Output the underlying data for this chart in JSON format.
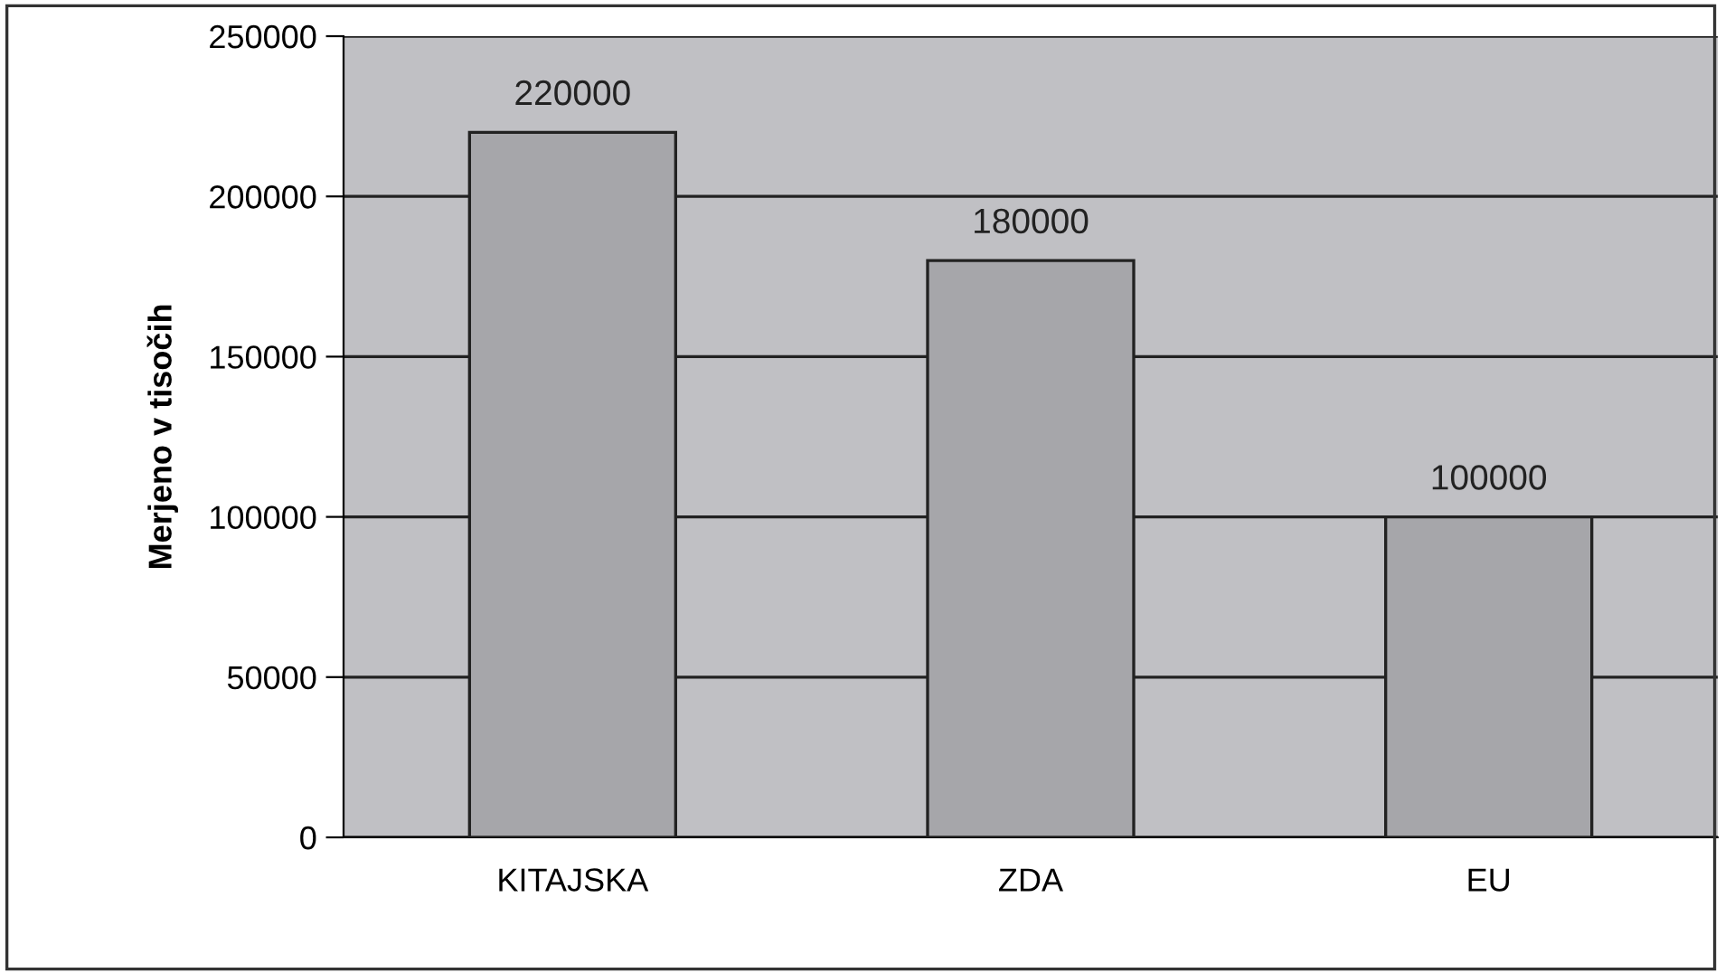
{
  "chart_data": {
    "type": "bar",
    "ylabel": "Merjeno v tisočih",
    "categories": [
      "KITAJSKA",
      "ZDA",
      "EU"
    ],
    "values": [
      220000,
      180000,
      100000
    ],
    "color": "#a6a6aa",
    "ylim": [
      0,
      250000
    ],
    "yticks": [
      0,
      50000,
      100000,
      150000,
      200000,
      250000
    ],
    "grid": "y",
    "data_labels": true
  }
}
